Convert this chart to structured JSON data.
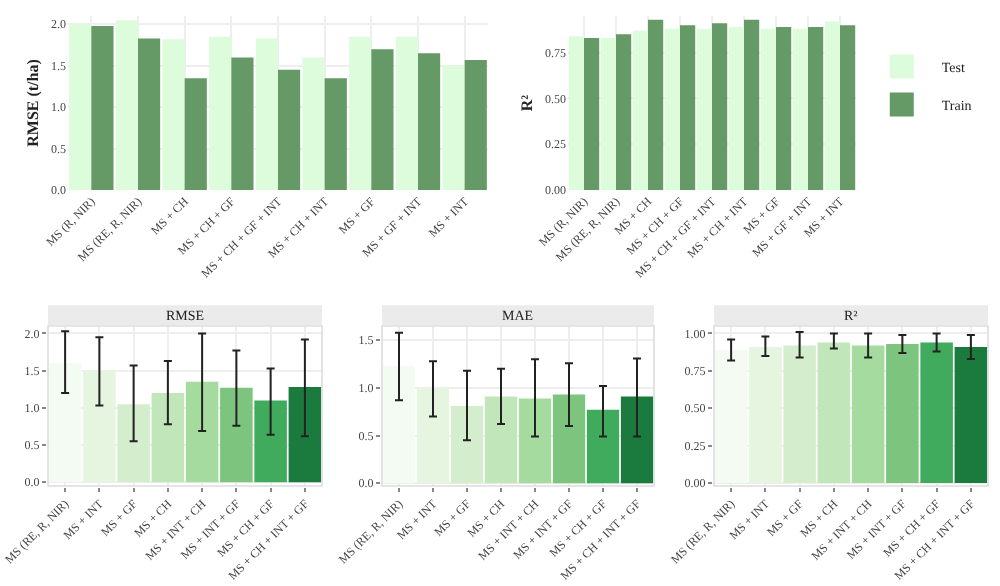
{
  "chart_data": [
    {
      "type": "bar",
      "ylabel": "RMSE (t/ha)",
      "categories": [
        "MS (R, NIR)",
        "MS (RE, R, NIR)",
        "MS + CH",
        "MS + CH + GF",
        "MS + CH + GF + INT",
        "MS + CH + INT",
        "MS + GF",
        "MS + GF + INT",
        "MS + INT"
      ],
      "series": [
        {
          "color": "#dcfcdc",
          "values": [
            2.0,
            2.05,
            1.82,
            1.85,
            1.83,
            1.6,
            1.85,
            1.85,
            1.5
          ]
        },
        {
          "color": "#659966",
          "values": [
            1.98,
            1.83,
            1.35,
            1.6,
            1.45,
            1.35,
            1.7,
            1.65,
            1.57
          ]
        }
      ],
      "ylim": [
        0,
        2.1
      ],
      "yticks": [
        {
          "value": 0,
          "label": "0.0"
        },
        {
          "value": 0.5,
          "label": "0.5"
        },
        {
          "value": 1,
          "label": "1.0"
        },
        {
          "value": 1.5,
          "label": "1.5"
        },
        {
          "value": 2,
          "label": "2.0"
        }
      ],
      "grid": true,
      "legend": false
    },
    {
      "type": "bar",
      "ylabel": "R²",
      "categories": [
        "MS (R, NIR)",
        "MS (RE, R, NIR)",
        "MS + CH",
        "MS + CH + GF",
        "MS + CH + GF + INT",
        "MS + CH + INT",
        "MS + GF",
        "MS + GF + INT",
        "MS + INT"
      ],
      "series": [
        {
          "name": "Test",
          "color": "#dcfcdc",
          "values": [
            0.84,
            0.83,
            0.87,
            0.88,
            0.88,
            0.89,
            0.88,
            0.88,
            0.92
          ]
        },
        {
          "name": "Train",
          "color": "#659966",
          "values": [
            0.83,
            0.85,
            0.93,
            0.9,
            0.91,
            0.93,
            0.89,
            0.89,
            0.9
          ]
        }
      ],
      "ylim": [
        0,
        0.95
      ],
      "yticks": [
        {
          "value": 0,
          "label": "0.00"
        },
        {
          "value": 0.25,
          "label": "0.25"
        },
        {
          "value": 0.5,
          "label": "0.50"
        },
        {
          "value": 0.75,
          "label": "0.75"
        }
      ],
      "grid": true,
      "legend": "right"
    },
    {
      "type": "bar",
      "title": "RMSE",
      "categories": [
        "MS (RE, R, NIR)",
        "MS + INT",
        "MS + GF",
        "MS + CH",
        "MS + INT + CH",
        "MS + INT + GF",
        "MS + CH + GF",
        "MS + CH + INT + GF"
      ],
      "values": [
        1.6,
        1.5,
        1.05,
        1.2,
        1.35,
        1.27,
        1.1,
        1.28
      ],
      "colors": [
        "#f4fbf2",
        "#e5f5e0",
        "#d4eecd",
        "#c0e6b9",
        "#a6dba0",
        "#7dc57f",
        "#41ab5d",
        "#1b7a3e"
      ],
      "errors": [
        [
          1.2,
          2.03
        ],
        [
          1.03,
          1.95
        ],
        [
          0.55,
          1.57
        ],
        [
          0.78,
          1.63
        ],
        [
          0.69,
          2.0
        ],
        [
          0.76,
          1.77
        ],
        [
          0.64,
          1.53
        ],
        [
          0.62,
          1.92
        ]
      ],
      "ylim": [
        -0.05,
        2.1
      ],
      "yticks": [
        {
          "value": 0,
          "label": "0.0"
        },
        {
          "value": 0.5,
          "label": "0.5"
        },
        {
          "value": 1,
          "label": "1.0"
        },
        {
          "value": 1.5,
          "label": "1.5"
        },
        {
          "value": 2,
          "label": "2.0"
        }
      ],
      "grid": true,
      "legend": false
    },
    {
      "type": "bar",
      "title": "MAE",
      "categories": [
        "MS (RE, R, NIR)",
        "MS + INT",
        "MS + GF",
        "MS + CH",
        "MS + INT + CH",
        "MS + INT + GF",
        "MS + CH + GF",
        "MS + CH + INT + GF"
      ],
      "values": [
        1.23,
        1.0,
        0.81,
        0.91,
        0.89,
        0.93,
        0.77,
        0.91
      ],
      "colors": [
        "#f4fbf2",
        "#e5f5e0",
        "#d4eecd",
        "#c0e6b9",
        "#a6dba0",
        "#7dc57f",
        "#41ab5d",
        "#1b7a3e"
      ],
      "errors": [
        [
          0.87,
          1.58
        ],
        [
          0.7,
          1.28
        ],
        [
          0.45,
          1.18
        ],
        [
          0.62,
          1.2
        ],
        [
          0.49,
          1.3
        ],
        [
          0.6,
          1.26
        ],
        [
          0.49,
          1.02
        ],
        [
          0.49,
          1.31
        ]
      ],
      "ylim": [
        -0.03,
        1.65
      ],
      "yticks": [
        {
          "value": 0,
          "label": "0.0"
        },
        {
          "value": 0.5,
          "label": "0.5"
        },
        {
          "value": 1,
          "label": "1.0"
        },
        {
          "value": 1.5,
          "label": "1.5"
        }
      ],
      "grid": true,
      "legend": false
    },
    {
      "type": "bar",
      "title": "R²",
      "categories": [
        "MS (RE, R, NIR)",
        "MS + INT",
        "MS + GF",
        "MS + CH",
        "MS + INT + CH",
        "MS + INT + GF",
        "MS + CH + GF",
        "MS + CH + INT + GF"
      ],
      "values": [
        0.89,
        0.91,
        0.92,
        0.94,
        0.92,
        0.93,
        0.94,
        0.91
      ],
      "colors": [
        "#f4fbf2",
        "#e5f5e0",
        "#d4eecd",
        "#c0e6b9",
        "#a6dba0",
        "#7dc57f",
        "#41ab5d",
        "#1b7a3e"
      ],
      "errors": [
        [
          0.82,
          0.96
        ],
        [
          0.85,
          0.98
        ],
        [
          0.84,
          1.01
        ],
        [
          0.9,
          1.0
        ],
        [
          0.84,
          1.0
        ],
        [
          0.87,
          0.99
        ],
        [
          0.88,
          1.0
        ],
        [
          0.83,
          0.99
        ]
      ],
      "ylim": [
        -0.02,
        1.05
      ],
      "yticks": [
        {
          "value": 0,
          "label": "0.00"
        },
        {
          "value": 0.25,
          "label": "0.25"
        },
        {
          "value": 0.5,
          "label": "0.50"
        },
        {
          "value": 0.75,
          "label": "0.75"
        },
        {
          "value": 1,
          "label": "1.00"
        }
      ],
      "grid": true,
      "legend": false
    }
  ]
}
